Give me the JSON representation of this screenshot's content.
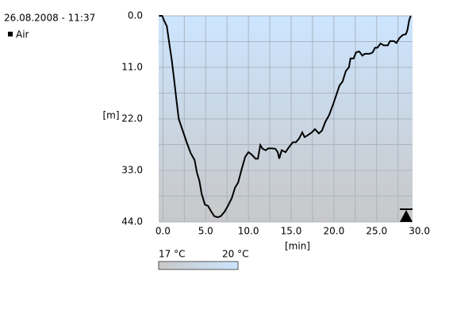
{
  "header": {
    "datetime": "26.08.2008 - 11:37"
  },
  "chart_data": {
    "type": "line",
    "x": [
      -0.46,
      -0.09,
      0.19,
      0.46,
      0.74,
      1.02,
      1.3,
      1.57,
      1.85,
      2.31,
      2.78,
      3.24,
      3.7,
      3.98,
      4.26,
      4.54,
      4.91,
      5.28,
      5.65,
      6.02,
      6.39,
      6.76,
      7.22,
      7.59,
      8.06,
      8.43,
      8.8,
      9.17,
      9.63,
      10,
      10.37,
      10.83,
      11.11,
      11.39,
      11.67,
      12.04,
      12.31,
      12.78,
      13.15,
      13.43,
      13.61,
      13.89,
      14.35,
      14.72,
      15.19,
      15.56,
      15.93,
      16.3,
      16.57,
      16.94,
      17.41,
      17.78,
      18.24,
      18.61,
      18.98,
      19.44,
      19.91,
      20.28,
      20.65,
      21.02,
      21.39,
      21.76,
      21.94,
      22.31,
      22.59,
      22.96,
      23.33,
      23.61,
      24.17,
      24.54,
      24.81,
      25.09,
      25.46,
      25.83,
      26.3,
      26.57,
      27.04,
      27.31,
      27.69,
      28.06,
      28.43,
      28.61,
      28.8,
      28.98
    ],
    "series": [
      {
        "name": "Air",
        "color": "#000000",
        "values": [
          0,
          0,
          1.2,
          2.2,
          5.9,
          9.3,
          13.5,
          17.8,
          22,
          24.5,
          27,
          29.3,
          30.8,
          33.5,
          35.2,
          38.1,
          40.3,
          40.6,
          41.8,
          42.8,
          43,
          42.8,
          41.8,
          40.6,
          38.9,
          36.7,
          35.6,
          33,
          30.1,
          29.1,
          29.6,
          30.5,
          30.5,
          27.6,
          28.4,
          28.7,
          28.3,
          28.3,
          28.4,
          29.1,
          30.5,
          28.7,
          29.1,
          28.1,
          27,
          27,
          26.2,
          24.9,
          25.9,
          25.5,
          24.9,
          24.2,
          25.1,
          24.5,
          22.7,
          21.2,
          18.9,
          16.9,
          14.9,
          14,
          11.8,
          11,
          9.1,
          9.1,
          7.8,
          7.6,
          8.5,
          8.1,
          8.1,
          7.8,
          6.8,
          6.8,
          5.9,
          6.3,
          6.3,
          5.4,
          5.4,
          5.8,
          4.7,
          4.1,
          3.9,
          3,
          1,
          0
        ]
      }
    ],
    "x_label": "[min]",
    "y_label": "[m]",
    "xlim": [
      -0.5,
      29.2
    ],
    "ylim": [
      44,
      0
    ],
    "y_inverted": true,
    "xticks": [
      {
        "value": 0,
        "label": "0.0"
      },
      {
        "value": 5,
        "label": "5.0"
      },
      {
        "value": 10,
        "label": "10.0"
      },
      {
        "value": 15,
        "label": "15.0"
      },
      {
        "value": 20,
        "label": "20.0"
      },
      {
        "value": 25,
        "label": "25.0"
      },
      {
        "value": 30,
        "label": "30.0"
      }
    ],
    "yticks": [
      {
        "value": 0,
        "label": "0.0"
      },
      {
        "value": 11,
        "label": "11.0"
      },
      {
        "value": 22,
        "label": "22.0"
      },
      {
        "value": 33,
        "label": "33.0"
      },
      {
        "value": 44,
        "label": "44.0"
      }
    ],
    "grid": true,
    "temperature_scale": {
      "min_label": "17 °C",
      "max_label": "20 °C",
      "min_color": "#c8c8c8",
      "max_color": "#cce5ff"
    }
  }
}
